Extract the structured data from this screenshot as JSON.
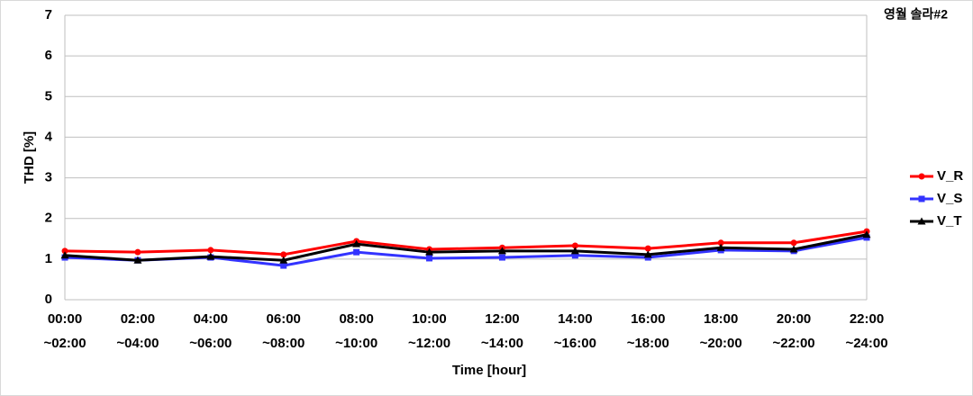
{
  "chart_data": {
    "type": "line",
    "annotation": "영월 솔라#2",
    "x_label": "Time [hour]",
    "y_label": "THD [%]",
    "categories": [
      [
        "00:00",
        "~02:00"
      ],
      [
        "02:00",
        "~04:00"
      ],
      [
        "04:00",
        "~06:00"
      ],
      [
        "06:00",
        "~08:00"
      ],
      [
        "08:00",
        "~10:00"
      ],
      [
        "10:00",
        "~12:00"
      ],
      [
        "12:00",
        "~14:00"
      ],
      [
        "14:00",
        "~16:00"
      ],
      [
        "16:00",
        "~18:00"
      ],
      [
        "18:00",
        "~20:00"
      ],
      [
        "20:00",
        "~22:00"
      ],
      [
        "22:00",
        "~24:00"
      ]
    ],
    "series": [
      {
        "name": "V_R",
        "color": "#ff0000",
        "marker": "circle",
        "values": [
          1.2,
          1.17,
          1.22,
          1.11,
          1.44,
          1.24,
          1.28,
          1.33,
          1.26,
          1.4,
          1.4,
          1.68
        ]
      },
      {
        "name": "V_S",
        "color": "#3333ff",
        "marker": "square",
        "values": [
          1.04,
          0.97,
          1.04,
          0.84,
          1.17,
          1.02,
          1.04,
          1.09,
          1.04,
          1.22,
          1.2,
          1.53
        ]
      },
      {
        "name": "V_T",
        "color": "#000000",
        "marker": "triangle",
        "values": [
          1.09,
          0.97,
          1.06,
          0.97,
          1.37,
          1.17,
          1.2,
          1.2,
          1.11,
          1.28,
          1.24,
          1.6
        ]
      }
    ],
    "ylim": [
      0,
      7
    ],
    "yticks": [
      0,
      1,
      2,
      3,
      4,
      5,
      6,
      7
    ],
    "grid": true,
    "legend_position": "right"
  }
}
